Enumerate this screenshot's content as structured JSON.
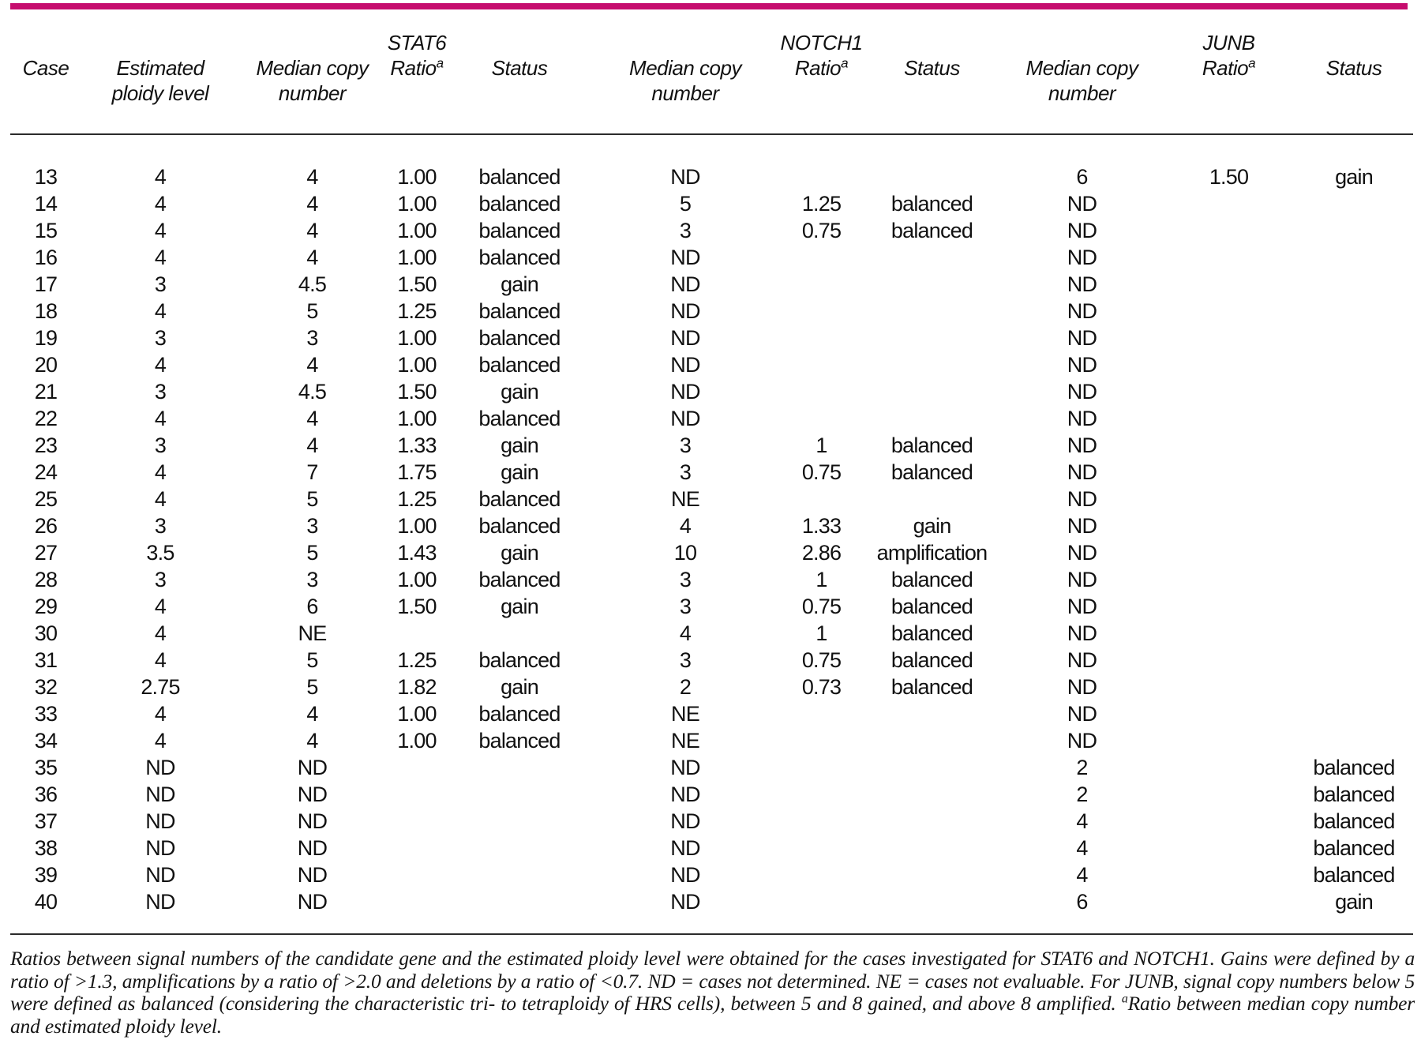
{
  "page": {
    "background_color": "#ffffff",
    "accent_bar_color": "#C60D6E",
    "text_color": "#111111",
    "rule_color": "#2b2b2b"
  },
  "table": {
    "columns": [
      {
        "gene": "",
        "label": "Case",
        "sub": ""
      },
      {
        "gene": "",
        "label": "Estimated",
        "sub": "ploidy level"
      },
      {
        "gene": "",
        "label": "Median copy",
        "sub": "number"
      },
      {
        "gene": "STAT6",
        "label": "Ratio",
        "sup": "a",
        "sub": ""
      },
      {
        "gene": "",
        "label": "Status",
        "sub": ""
      },
      {
        "gene": "",
        "label": "Median copy",
        "sub": "number"
      },
      {
        "gene": "NOTCH1",
        "label": "Ratio",
        "sup": "a",
        "sub": ""
      },
      {
        "gene": "",
        "label": "Status",
        "sub": ""
      },
      {
        "gene": "",
        "label": "Median copy",
        "sub": "number"
      },
      {
        "gene": "JUNB",
        "label": "Ratio",
        "sup": "a",
        "sub": ""
      },
      {
        "gene": "",
        "label": "Status",
        "sub": ""
      }
    ],
    "rows": [
      [
        "13",
        "4",
        "4",
        "1.00",
        "balanced",
        "ND",
        "",
        "",
        "6",
        "1.50",
        "gain"
      ],
      [
        "14",
        "4",
        "4",
        "1.00",
        "balanced",
        "5",
        "1.25",
        "balanced",
        "ND",
        "",
        ""
      ],
      [
        "15",
        "4",
        "4",
        "1.00",
        "balanced",
        "3",
        "0.75",
        "balanced",
        "ND",
        "",
        ""
      ],
      [
        "16",
        "4",
        "4",
        "1.00",
        "balanced",
        "ND",
        "",
        "",
        "ND",
        "",
        ""
      ],
      [
        "17",
        "3",
        "4.5",
        "1.50",
        "gain",
        "ND",
        "",
        "",
        "ND",
        "",
        ""
      ],
      [
        "18",
        "4",
        "5",
        "1.25",
        "balanced",
        "ND",
        "",
        "",
        "ND",
        "",
        ""
      ],
      [
        "19",
        "3",
        "3",
        "1.00",
        "balanced",
        "ND",
        "",
        "",
        "ND",
        "",
        ""
      ],
      [
        "20",
        "4",
        "4",
        "1.00",
        "balanced",
        "ND",
        "",
        "",
        "ND",
        "",
        ""
      ],
      [
        "21",
        "3",
        "4.5",
        "1.50",
        "gain",
        "ND",
        "",
        "",
        "ND",
        "",
        ""
      ],
      [
        "22",
        "4",
        "4",
        "1.00",
        "balanced",
        "ND",
        "",
        "",
        "ND",
        "",
        ""
      ],
      [
        "23",
        "3",
        "4",
        "1.33",
        "gain",
        "3",
        "1",
        "balanced",
        "ND",
        "",
        ""
      ],
      [
        "24",
        "4",
        "7",
        "1.75",
        "gain",
        "3",
        "0.75",
        "balanced",
        "ND",
        "",
        ""
      ],
      [
        "25",
        "4",
        "5",
        "1.25",
        "balanced",
        "NE",
        "",
        "",
        "ND",
        "",
        ""
      ],
      [
        "26",
        "3",
        "3",
        "1.00",
        "balanced",
        "4",
        "1.33",
        "gain",
        "ND",
        "",
        ""
      ],
      [
        "27",
        "3.5",
        "5",
        "1.43",
        "gain",
        "10",
        "2.86",
        "amplification",
        "ND",
        "",
        ""
      ],
      [
        "28",
        "3",
        "3",
        "1.00",
        "balanced",
        "3",
        "1",
        "balanced",
        "ND",
        "",
        ""
      ],
      [
        "29",
        "4",
        "6",
        "1.50",
        "gain",
        "3",
        "0.75",
        "balanced",
        "ND",
        "",
        ""
      ],
      [
        "30",
        "4",
        "NE",
        "",
        "",
        "4",
        "1",
        "balanced",
        "ND",
        "",
        ""
      ],
      [
        "31",
        "4",
        "5",
        "1.25",
        "balanced",
        "3",
        "0.75",
        "balanced",
        "ND",
        "",
        ""
      ],
      [
        "32",
        "2.75",
        "5",
        "1.82",
        "gain",
        "2",
        "0.73",
        "balanced",
        "ND",
        "",
        ""
      ],
      [
        "33",
        "4",
        "4",
        "1.00",
        "balanced",
        "NE",
        "",
        "",
        "ND",
        "",
        ""
      ],
      [
        "34",
        "4",
        "4",
        "1.00",
        "balanced",
        "NE",
        "",
        "",
        "ND",
        "",
        ""
      ],
      [
        "35",
        "ND",
        "ND",
        "",
        "",
        "ND",
        "",
        "",
        "2",
        "",
        "balanced"
      ],
      [
        "36",
        "ND",
        "ND",
        "",
        "",
        "ND",
        "",
        "",
        "2",
        "",
        "balanced"
      ],
      [
        "37",
        "ND",
        "ND",
        "",
        "",
        "ND",
        "",
        "",
        "4",
        "",
        "balanced"
      ],
      [
        "38",
        "ND",
        "ND",
        "",
        "",
        "ND",
        "",
        "",
        "4",
        "",
        "balanced"
      ],
      [
        "39",
        "ND",
        "ND",
        "",
        "",
        "ND",
        "",
        "",
        "4",
        "",
        "balanced"
      ],
      [
        "40",
        "ND",
        "ND",
        "",
        "",
        "ND",
        "",
        "",
        "6",
        "",
        "gain"
      ]
    ]
  },
  "footnote": {
    "part1": "Ratios between signal numbers of the candidate gene and the estimated ploidy level were obtained for the cases investigated for STAT6 and NOTCH1. Gains were defined by a ratio of >1.3, amplifications by a ratio of >2.0 and deletions by a ratio of <0.7. ND = cases not determined. NE = cases not evaluable. For JUNB, signal copy numbers below 5 were defined as balanced (considering the characteristic tri- to tetraploidy of HRS cells), between 5 and 8 gained, and above 8 amplified. ",
    "sup": "a",
    "part2": "Ratio between median copy number and estimated ploidy level."
  }
}
